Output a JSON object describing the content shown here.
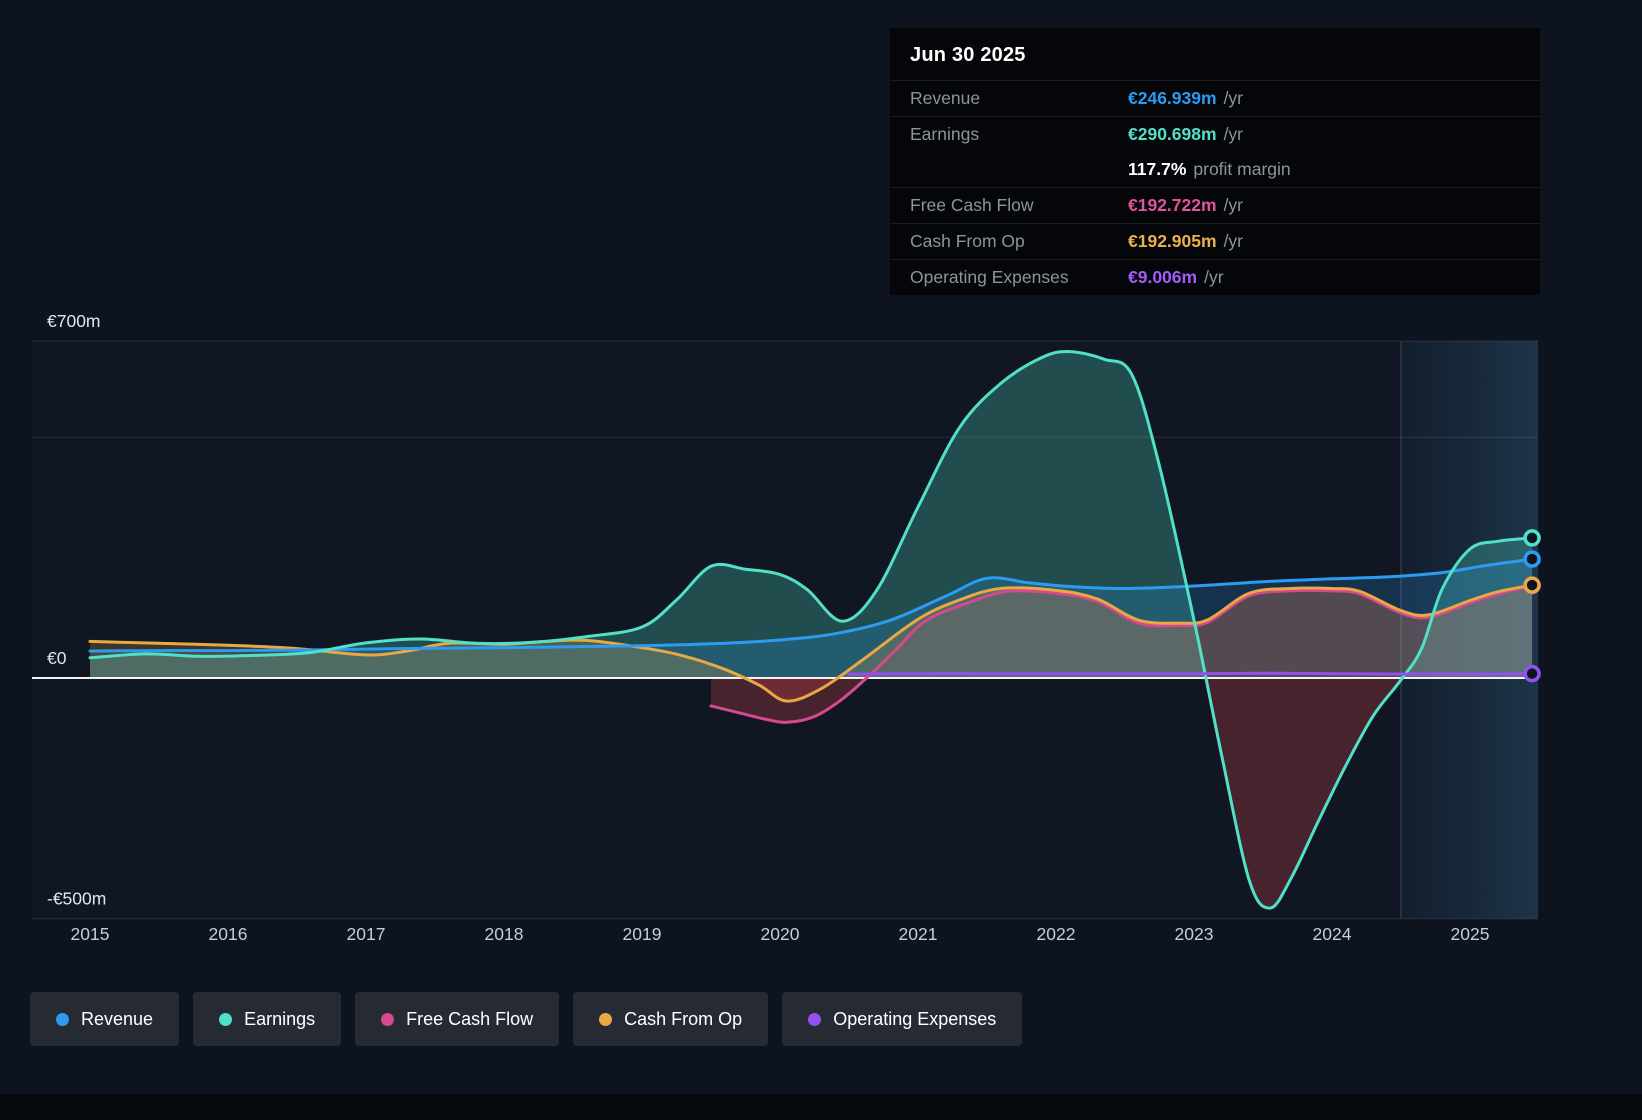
{
  "tooltip": {
    "date": "Jun 30 2025",
    "rows": [
      {
        "label": "Revenue",
        "value": "€246.939m",
        "suffix": "/yr",
        "color": "#2d9bf0"
      },
      {
        "label": "Earnings",
        "value": "€290.698m",
        "suffix": "/yr",
        "color": "#52e0c8"
      },
      {
        "label": "",
        "value": "117.7%",
        "suffix": "profit margin",
        "color": "#ffffff"
      },
      {
        "label": "Free Cash Flow",
        "value": "€192.722m",
        "suffix": "/yr",
        "color": "#e0549c"
      },
      {
        "label": "Cash From Op",
        "value": "€192.905m",
        "suffix": "/yr",
        "color": "#eeb04f"
      },
      {
        "label": "Operating Expenses",
        "value": "€9.006m",
        "suffix": "/yr",
        "color": "#a45cf7"
      }
    ]
  },
  "legend": {
    "items": [
      {
        "label": "Revenue"
      },
      {
        "label": "Earnings"
      },
      {
        "label": "Free Cash Flow"
      },
      {
        "label": "Cash From Op"
      },
      {
        "label": "Operating Expenses"
      }
    ]
  },
  "chart_data": {
    "type": "line",
    "title": "",
    "unit": "€m",
    "xlim": [
      2015,
      2025.5
    ],
    "ylim": [
      -500,
      700
    ],
    "x_ticks": [
      2015,
      2016,
      2017,
      2018,
      2019,
      2020,
      2021,
      2022,
      2023,
      2024,
      2025
    ],
    "y_gridlines": [
      700,
      500,
      -500
    ],
    "y_axis_labels": [
      {
        "value": 700,
        "label": "€700m"
      },
      {
        "value": 0,
        "label": "€0"
      },
      {
        "value": -500,
        "label": "-€500m"
      }
    ],
    "today_x": 2024.5,
    "legend_position": "bottom",
    "grid": true,
    "series": [
      {
        "name": "Revenue",
        "color": "#2d9bf0",
        "points": [
          [
            2015,
            56
          ],
          [
            2015.5,
            57
          ],
          [
            2016,
            57
          ],
          [
            2016.5,
            58
          ],
          [
            2017,
            60
          ],
          [
            2017.5,
            62
          ],
          [
            2018,
            63
          ],
          [
            2018.5,
            65
          ],
          [
            2019,
            67
          ],
          [
            2019.5,
            71
          ],
          [
            2020,
            79
          ],
          [
            2020.4,
            92
          ],
          [
            2020.8,
            120
          ],
          [
            2021.2,
            170
          ],
          [
            2021.5,
            207
          ],
          [
            2021.8,
            198
          ],
          [
            2022.1,
            190
          ],
          [
            2022.5,
            186
          ],
          [
            2023,
            191
          ],
          [
            2023.5,
            200
          ],
          [
            2024,
            206
          ],
          [
            2024.4,
            210
          ],
          [
            2024.8,
            219
          ],
          [
            2025.1,
            233
          ],
          [
            2025.45,
            247
          ]
        ]
      },
      {
        "name": "Earnings",
        "color": "#52e0c8",
        "points": [
          [
            2015,
            42
          ],
          [
            2015.4,
            50
          ],
          [
            2015.8,
            45
          ],
          [
            2016.2,
            47
          ],
          [
            2016.6,
            53
          ],
          [
            2017,
            73
          ],
          [
            2017.4,
            81
          ],
          [
            2017.8,
            72
          ],
          [
            2018.2,
            74
          ],
          [
            2018.6,
            86
          ],
          [
            2019,
            106
          ],
          [
            2019.25,
            162
          ],
          [
            2019.5,
            232
          ],
          [
            2019.75,
            226
          ],
          [
            2020,
            215
          ],
          [
            2020.2,
            183
          ],
          [
            2020.45,
            118
          ],
          [
            2020.7,
            182
          ],
          [
            2021,
            355
          ],
          [
            2021.3,
            520
          ],
          [
            2021.6,
            612
          ],
          [
            2021.9,
            666
          ],
          [
            2022.1,
            678
          ],
          [
            2022.35,
            662
          ],
          [
            2022.55,
            630
          ],
          [
            2022.75,
            440
          ],
          [
            2023,
            120
          ],
          [
            2023.2,
            -160
          ],
          [
            2023.4,
            -420
          ],
          [
            2023.55,
            -478
          ],
          [
            2023.7,
            -418
          ],
          [
            2023.9,
            -298
          ],
          [
            2024.1,
            -182
          ],
          [
            2024.3,
            -78
          ],
          [
            2024.5,
            -4
          ],
          [
            2024.65,
            62
          ],
          [
            2024.8,
            186
          ],
          [
            2025,
            268
          ],
          [
            2025.2,
            284
          ],
          [
            2025.45,
            291
          ]
        ]
      },
      {
        "name": "Free Cash Flow",
        "color": "#d6488f",
        "points": [
          [
            2019.5,
            -58
          ],
          [
            2019.7,
            -72
          ],
          [
            2019.9,
            -86
          ],
          [
            2020.05,
            -92
          ],
          [
            2020.25,
            -80
          ],
          [
            2020.45,
            -44
          ],
          [
            2020.65,
            6
          ],
          [
            2020.85,
            62
          ],
          [
            2021.05,
            118
          ],
          [
            2021.35,
            155
          ],
          [
            2021.65,
            180
          ],
          [
            2022,
            176
          ],
          [
            2022.3,
            159
          ],
          [
            2022.6,
            114
          ],
          [
            2022.9,
            109
          ],
          [
            2023.1,
            116
          ],
          [
            2023.4,
            171
          ],
          [
            2023.7,
            181
          ],
          [
            2024,
            181
          ],
          [
            2024.2,
            175
          ],
          [
            2024.5,
            135
          ],
          [
            2024.7,
            126
          ],
          [
            2025,
            156
          ],
          [
            2025.2,
            174
          ],
          [
            2025.45,
            192
          ]
        ]
      },
      {
        "name": "Cash From Op",
        "color": "#e8a844",
        "points": [
          [
            2015,
            76
          ],
          [
            2015.5,
            72
          ],
          [
            2016,
            68
          ],
          [
            2016.5,
            61
          ],
          [
            2017,
            48
          ],
          [
            2017.3,
            56
          ],
          [
            2017.6,
            72
          ],
          [
            2018,
            70
          ],
          [
            2018.3,
            76
          ],
          [
            2018.6,
            78
          ],
          [
            2019,
            63
          ],
          [
            2019.3,
            46
          ],
          [
            2019.6,
            18
          ],
          [
            2019.85,
            -15
          ],
          [
            2020.05,
            -48
          ],
          [
            2020.3,
            -22
          ],
          [
            2020.6,
            38
          ],
          [
            2021,
            122
          ],
          [
            2021.3,
            162
          ],
          [
            2021.6,
            186
          ],
          [
            2022,
            182
          ],
          [
            2022.3,
            164
          ],
          [
            2022.6,
            120
          ],
          [
            2022.9,
            114
          ],
          [
            2023.1,
            121
          ],
          [
            2023.4,
            176
          ],
          [
            2023.7,
            186
          ],
          [
            2024,
            186
          ],
          [
            2024.2,
            180
          ],
          [
            2024.5,
            140
          ],
          [
            2024.7,
            131
          ],
          [
            2025,
            161
          ],
          [
            2025.2,
            179
          ],
          [
            2025.45,
            193
          ]
        ]
      },
      {
        "name": "Operating Expenses",
        "color": "#9350f0",
        "points": [
          [
            2020.5,
            8
          ],
          [
            2021,
            9
          ],
          [
            2021.5,
            9
          ],
          [
            2022,
            9
          ],
          [
            2022.5,
            9
          ],
          [
            2023,
            9
          ],
          [
            2023.5,
            10
          ],
          [
            2024,
            9
          ],
          [
            2024.5,
            8
          ],
          [
            2025,
            8
          ],
          [
            2025.45,
            9
          ]
        ]
      }
    ]
  }
}
